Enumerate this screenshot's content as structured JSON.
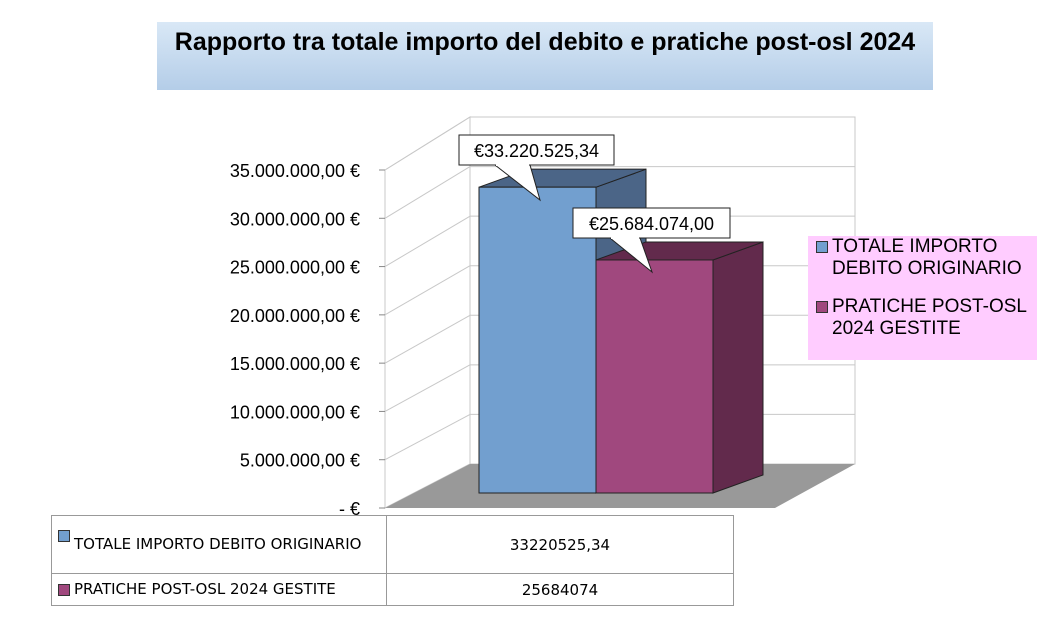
{
  "title": "Rapporto tra totale importo del debito e pratiche post-osl 2024",
  "chart_data": {
    "type": "bar",
    "categories": [
      "TOTALE IMPORTO DEBITO ORIGINARIO",
      "PRATICHE POST-OSL 2024 GESTITE"
    ],
    "values": [
      33220525.34,
      25684074
    ],
    "data_labels": [
      "€33.220.525,34",
      "€25.684.074,00"
    ],
    "y_tick_labels": [
      "-  €",
      "5.000.000,00 €",
      "10.000.000,00 €",
      "15.000.000,00 €",
      "20.000.000,00 €",
      "25.000.000,00 €",
      "30.000.000,00 €",
      "35.000.000,00 €"
    ],
    "y_ticks": [
      0,
      5000000,
      10000000,
      15000000,
      20000000,
      25000000,
      30000000,
      35000000
    ],
    "ylim": [
      0,
      35000000
    ],
    "grid": true,
    "legend_position": "right",
    "colors": [
      "#729fcf",
      "#a0487e"
    ],
    "side_colors": [
      "#4b6587",
      "#622a4c"
    ]
  },
  "legend": {
    "items": [
      {
        "label": "TOTALE IMPORTO DEBITO ORIGINARIO",
        "color": "#729fcf"
      },
      {
        "label": "PRATICHE POST-OSL 2024 GESTITE",
        "color": "#a0487e"
      }
    ]
  },
  "table": {
    "rows": [
      {
        "label": "TOTALE IMPORTO DEBITO ORIGINARIO",
        "value": "33220525,34",
        "color": "#729fcf"
      },
      {
        "label": "PRATICHE POST-OSL 2024 GESTITE",
        "value": "25684074",
        "color": "#a0487e"
      }
    ]
  }
}
